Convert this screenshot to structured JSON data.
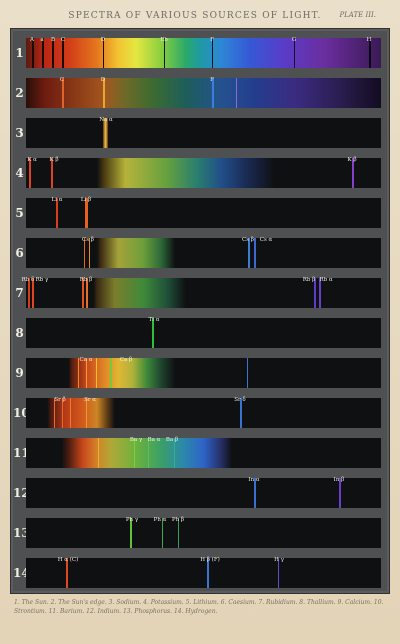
{
  "header": {
    "title": "SPECTRA OF VARIOUS SOURCES OF LIGHT.",
    "plate": "PLATE III."
  },
  "colors": {
    "paper": "#e8dcc4",
    "frame": "#4e5052",
    "band_background": "#0f1012",
    "label_text": "#f2efe6"
  },
  "spectra": [
    {
      "num": "1",
      "labels": [
        "A",
        "a",
        "B",
        "C",
        "D",
        "Eb",
        "F",
        "G",
        "H"
      ]
    },
    {
      "num": "2",
      "labels": [
        "C",
        "D",
        "F"
      ]
    },
    {
      "num": "3",
      "labels": [
        "Na α"
      ]
    },
    {
      "num": "4",
      "labels": [
        "K α",
        "K β",
        "K β"
      ]
    },
    {
      "num": "5",
      "labels": [
        "Li α",
        "Li β"
      ]
    },
    {
      "num": "6",
      "labels": [
        "Cs β",
        "Cs β",
        "Cs α"
      ]
    },
    {
      "num": "7",
      "labels": [
        "Rb δ",
        "Rb γ",
        "Rb β",
        "Rb β",
        "Rb α"
      ]
    },
    {
      "num": "8",
      "labels": [
        "Tl α"
      ]
    },
    {
      "num": "9",
      "labels": [
        "Ca α",
        "Ca β"
      ]
    },
    {
      "num": "10",
      "labels": [
        "Sr β",
        "Sr α",
        "Sr δ"
      ]
    },
    {
      "num": "11",
      "labels": [
        "Ba γ",
        "Ba α",
        "Ba β"
      ]
    },
    {
      "num": "12",
      "labels": [
        "In α",
        "In β"
      ]
    },
    {
      "num": "13",
      "labels": [
        "Ph γ",
        "Ph α",
        "Ph β"
      ]
    },
    {
      "num": "14",
      "labels": [
        "H α (C)",
        "H β (F)",
        "H γ"
      ]
    }
  ],
  "caption": "1. The Sun. 2. The Sun's edge. 3. Sodium. 4. Potassium. 5. Lithium. 6. Caesium. 7. Rubidium. 8. Thallium. 9. Calcium. 10. Strontium. 11. Barium. 12. Indium. 13. Phosphorus. 14. Hydrogen."
}
